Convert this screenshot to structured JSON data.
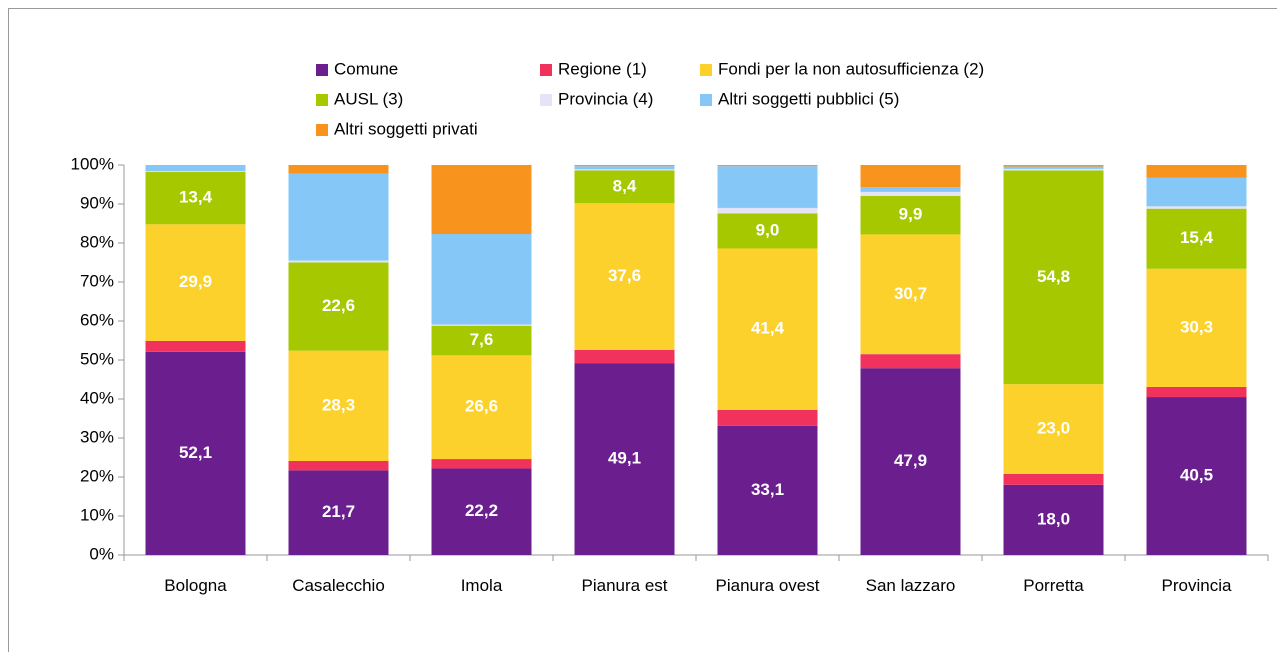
{
  "chart_data": {
    "type": "stacked_bar",
    "categories": [
      "Bologna",
      "Casalecchio",
      "Imola",
      "Pianura est",
      "Pianura ovest",
      "San lazzaro",
      "Porretta",
      "Provincia"
    ],
    "series": [
      {
        "name": "Comune",
        "color": "#6b1f8f",
        "values": [
          52.1,
          21.7,
          22.2,
          49.1,
          33.1,
          47.9,
          18.0,
          40.5
        ],
        "value_labels": [
          "52,1",
          "21,7",
          "22,2",
          "49,1",
          "33,1",
          "47,9",
          "18,0",
          "40,5"
        ]
      },
      {
        "name": "Regione (1)",
        "color": "#f0325c",
        "values": [
          2.8,
          2.4,
          2.4,
          3.5,
          4.1,
          3.6,
          2.8,
          2.6
        ]
      },
      {
        "name": "Fondi per la non autosufficienza (2)",
        "color": "#fdd12b",
        "values": [
          29.9,
          28.3,
          26.6,
          37.6,
          41.4,
          30.7,
          23.0,
          30.3
        ],
        "value_labels": [
          "29,9",
          "28,3",
          "26,6",
          "37,6",
          "41,4",
          "30,7",
          "23,0",
          "30,3"
        ]
      },
      {
        "name": "AUSL (3)",
        "color": "#a6c800",
        "values": [
          13.4,
          22.6,
          7.6,
          8.4,
          9.0,
          9.9,
          54.8,
          15.4
        ],
        "value_labels": [
          "13,4",
          "22,6",
          "7,6",
          "8,4",
          "9,0",
          "9,9",
          "54,8",
          "15,4"
        ]
      },
      {
        "name": "Provincia (4)",
        "color": "#e4e4f6",
        "values": [
          0.2,
          0.5,
          0.3,
          0.3,
          1.4,
          1.0,
          0.4,
          0.6
        ]
      },
      {
        "name": "Altri soggetti pubblici (5)",
        "color": "#85c8f8",
        "values": [
          1.6,
          22.3,
          23.2,
          0.8,
          10.7,
          1.2,
          0.6,
          7.3
        ]
      },
      {
        "name": "Altri soggetti privati",
        "color": "#f8941d",
        "values": [
          0,
          2.2,
          17.7,
          0.3,
          0.3,
          5.7,
          0.4,
          3.3
        ]
      }
    ],
    "ylim": [
      0,
      100
    ],
    "yticks": [
      {
        "value": 0,
        "label": "0%"
      },
      {
        "value": 10,
        "label": "10%"
      },
      {
        "value": 20,
        "label": "20%"
      },
      {
        "value": 30,
        "label": "30%"
      },
      {
        "value": 40,
        "label": "40%"
      },
      {
        "value": 50,
        "label": "50%"
      },
      {
        "value": 60,
        "label": "60%"
      },
      {
        "value": 70,
        "label": "70%"
      },
      {
        "value": 80,
        "label": "80%"
      },
      {
        "value": 90,
        "label": "90%"
      },
      {
        "value": 100,
        "label": "100%"
      }
    ],
    "grid": false
  }
}
